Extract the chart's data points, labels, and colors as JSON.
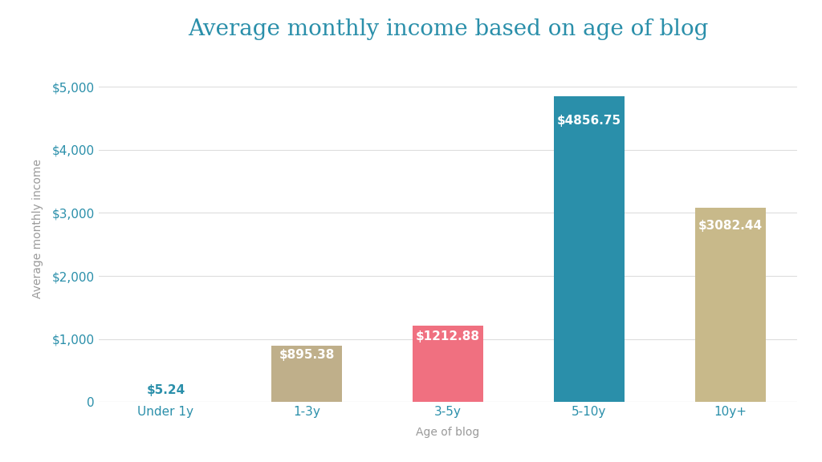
{
  "title": "Average monthly income based on age of blog",
  "xlabel": "Age of blog",
  "ylabel": "Average monthly income",
  "categories": [
    "Under 1y",
    "1-3y",
    "3-5y",
    "5-10y",
    "10y+"
  ],
  "values": [
    5.24,
    895.38,
    1212.88,
    4856.75,
    3082.44
  ],
  "bar_colors": [
    "#d0cfc8",
    "#bfaf8a",
    "#f07080",
    "#2a8faa",
    "#c8b98a"
  ],
  "bar_labels": [
    "$5.24",
    "$895.38",
    "$1212.88",
    "$4856.75",
    "$3082.44"
  ],
  "label_colors": [
    "#2a8faa",
    "#ffffff",
    "#ffffff",
    "#ffffff",
    "#ffffff"
  ],
  "title_color": "#2a8faa",
  "axis_label_color": "#999999",
  "tick_color": "#2a8faa",
  "background_color": "#ffffff",
  "ylim": [
    0,
    5500
  ],
  "yticks": [
    0,
    1000,
    2000,
    3000,
    4000,
    5000
  ],
  "ytick_labels": [
    "0",
    "$1,000",
    "$2,000",
    "$3,000",
    "$4,000",
    "$5,000"
  ],
  "title_fontsize": 20,
  "axis_label_fontsize": 10,
  "tick_fontsize": 11,
  "bar_label_fontsize": 11
}
